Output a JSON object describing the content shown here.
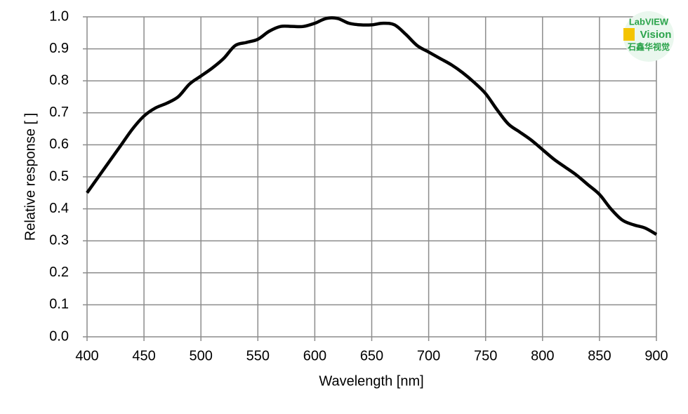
{
  "chart_data": {
    "type": "line",
    "x_label": "Wavelength [nm]",
    "y_label": "Relative response [ ]",
    "x": [
      400,
      410,
      420,
      430,
      440,
      450,
      460,
      470,
      480,
      490,
      500,
      510,
      520,
      530,
      540,
      550,
      560,
      570,
      580,
      590,
      600,
      610,
      620,
      630,
      640,
      650,
      660,
      670,
      680,
      690,
      700,
      710,
      720,
      730,
      740,
      750,
      760,
      770,
      780,
      790,
      800,
      810,
      820,
      830,
      840,
      850,
      860,
      870,
      880,
      890,
      900
    ],
    "series": [
      {
        "color": "#000000",
        "values": [
          0.45,
          0.5,
          0.55,
          0.6,
          0.65,
          0.69,
          0.715,
          0.73,
          0.75,
          0.79,
          0.815,
          0.84,
          0.87,
          0.91,
          0.92,
          0.93,
          0.955,
          0.97,
          0.97,
          0.97,
          0.98,
          0.995,
          0.995,
          0.98,
          0.975,
          0.975,
          0.98,
          0.975,
          0.945,
          0.91,
          0.89,
          0.87,
          0.85,
          0.825,
          0.795,
          0.76,
          0.71,
          0.665,
          0.64,
          0.615,
          0.585,
          0.555,
          0.53,
          0.505,
          0.475,
          0.445,
          0.4,
          0.365,
          0.35,
          0.34,
          0.32
        ]
      }
    ],
    "xlim": [
      400,
      900
    ],
    "xticks": [
      400,
      450,
      500,
      550,
      600,
      650,
      700,
      750,
      800,
      850,
      900
    ],
    "ylim": [
      0,
      1
    ],
    "yticks": [
      {
        "value": 0,
        "label": "0.0"
      },
      0.1,
      0.2,
      0.3,
      0.4,
      0.5,
      0.6,
      0.7,
      0.8,
      0.9,
      {
        "value": 1,
        "label": "1.0"
      }
    ],
    "grid": true
  },
  "logo": {
    "line1": "LabVIEW",
    "line2": "Vision",
    "line3": "石鑫华视觉"
  }
}
